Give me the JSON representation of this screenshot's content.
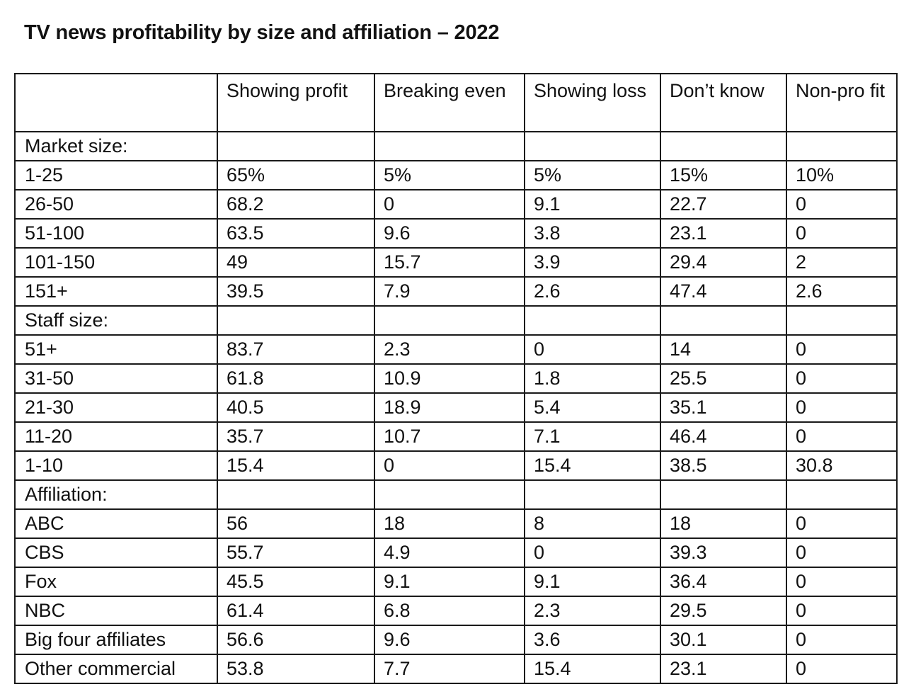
{
  "title": "TV news profitability by size and affiliation – 2022",
  "chart_data": {
    "type": "table",
    "title": "TV news profitability by size and affiliation – 2022",
    "columns": [
      "",
      "Showing profit",
      "Breaking even",
      "Showing loss",
      "Don’t know",
      "Non-profit"
    ],
    "column_display": [
      "",
      "Showing profit",
      "Breaking even",
      "Showing loss",
      "Don’t know",
      "Non-pro fit"
    ],
    "rows": [
      {
        "label": "Market size:",
        "values": [
          "",
          "",
          "",
          "",
          ""
        ]
      },
      {
        "label": "1-25",
        "values": [
          "65%",
          "5%",
          "5%",
          "15%",
          "10%"
        ]
      },
      {
        "label": "26-50",
        "values": [
          "68.2",
          "0",
          "9.1",
          "22.7",
          "0"
        ]
      },
      {
        "label": "51-100",
        "values": [
          "63.5",
          "9.6",
          "3.8",
          "23.1",
          "0"
        ]
      },
      {
        "label": "101-150",
        "values": [
          "49",
          "15.7",
          "3.9",
          "29.4",
          "2"
        ]
      },
      {
        "label": "151+",
        "values": [
          "39.5",
          "7.9",
          "2.6",
          "47.4",
          "2.6"
        ]
      },
      {
        "label": "Staff size:",
        "values": [
          "",
          "",
          "",
          "",
          ""
        ]
      },
      {
        "label": "51+",
        "values": [
          "83.7",
          "2.3",
          "0",
          "14",
          "0"
        ]
      },
      {
        "label": "31-50",
        "values": [
          "61.8",
          "10.9",
          "1.8",
          "25.5",
          "0"
        ]
      },
      {
        "label": "21-30",
        "values": [
          "40.5",
          "18.9",
          "5.4",
          "35.1",
          "0"
        ]
      },
      {
        "label": "11-20",
        "values": [
          "35.7",
          "10.7",
          "7.1",
          "46.4",
          "0"
        ]
      },
      {
        "label": "1-10",
        "values": [
          "15.4",
          "0",
          "15.4",
          "38.5",
          "30.8"
        ]
      },
      {
        "label": "Affiliation:",
        "values": [
          "",
          "",
          "",
          "",
          ""
        ]
      },
      {
        "label": "ABC",
        "values": [
          "56",
          "18",
          "8",
          "18",
          "0"
        ]
      },
      {
        "label": "CBS",
        "values": [
          "55.7",
          "4.9",
          "0",
          "39.3",
          "0"
        ]
      },
      {
        "label": "Fox",
        "values": [
          "45.5",
          "9.1",
          "9.1",
          "36.4",
          "0"
        ]
      },
      {
        "label": "NBC",
        "values": [
          "61.4",
          "6.8",
          "2.3",
          "29.5",
          "0"
        ]
      },
      {
        "label": "Big four affiliates",
        "values": [
          "56.6",
          "9.6",
          "3.6",
          "30.1",
          "0"
        ]
      },
      {
        "label": "Other commercial",
        "values": [
          "53.8",
          "7.7",
          "15.4",
          "23.1",
          "0"
        ]
      }
    ]
  }
}
